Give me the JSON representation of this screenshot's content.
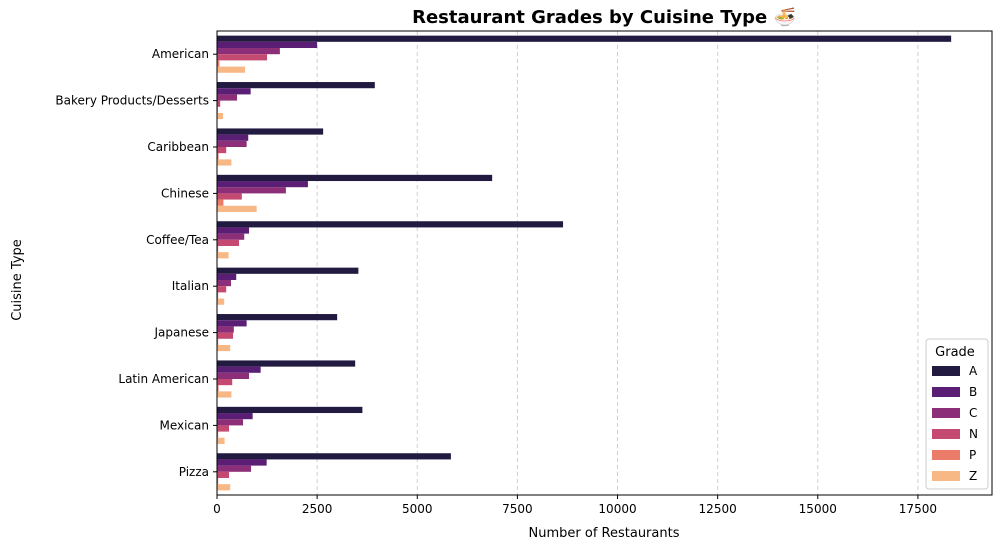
{
  "chart_data": {
    "type": "bar",
    "orientation": "horizontal",
    "title": "Restaurant Grades by Cuisine Type 🍜",
    "xlabel": "Number of Restaurants",
    "ylabel": "Cuisine Type",
    "categories": [
      "American",
      "Bakery Products/Desserts",
      "Caribbean",
      "Chinese",
      "Coffee/Tea",
      "Italian",
      "Japanese",
      "Latin American",
      "Mexican",
      "Pizza"
    ],
    "xlim": [
      0,
      19350
    ],
    "xticks": [
      0,
      2500,
      5000,
      7500,
      10000,
      12500,
      15000,
      17500
    ],
    "x_grid": "dashed vertical",
    "legend": {
      "title": "Grade",
      "placement": "lower-right"
    },
    "series": [
      {
        "name": "A",
        "color": "#221a40",
        "values": [
          18330,
          3940,
          2650,
          6870,
          8640,
          3530,
          3000,
          3450,
          3630,
          5840
        ]
      },
      {
        "name": "B",
        "color": "#5a1f75",
        "values": [
          2500,
          840,
          780,
          2270,
          800,
          480,
          740,
          1090,
          890,
          1240
        ]
      },
      {
        "name": "C",
        "color": "#8c2f78",
        "values": [
          1570,
          500,
          740,
          1720,
          680,
          350,
          420,
          800,
          650,
          850
        ]
      },
      {
        "name": "N",
        "color": "#c54a72",
        "values": [
          1250,
          80,
          230,
          620,
          550,
          230,
          400,
          380,
          300,
          300
        ]
      },
      {
        "name": "P",
        "color": "#ec7c6a",
        "values": [
          60,
          20,
          40,
          160,
          30,
          30,
          30,
          40,
          30,
          30
        ]
      },
      {
        "name": "Z",
        "color": "#f8b886",
        "values": [
          700,
          150,
          360,
          990,
          290,
          180,
          330,
          360,
          190,
          330
        ]
      }
    ]
  }
}
